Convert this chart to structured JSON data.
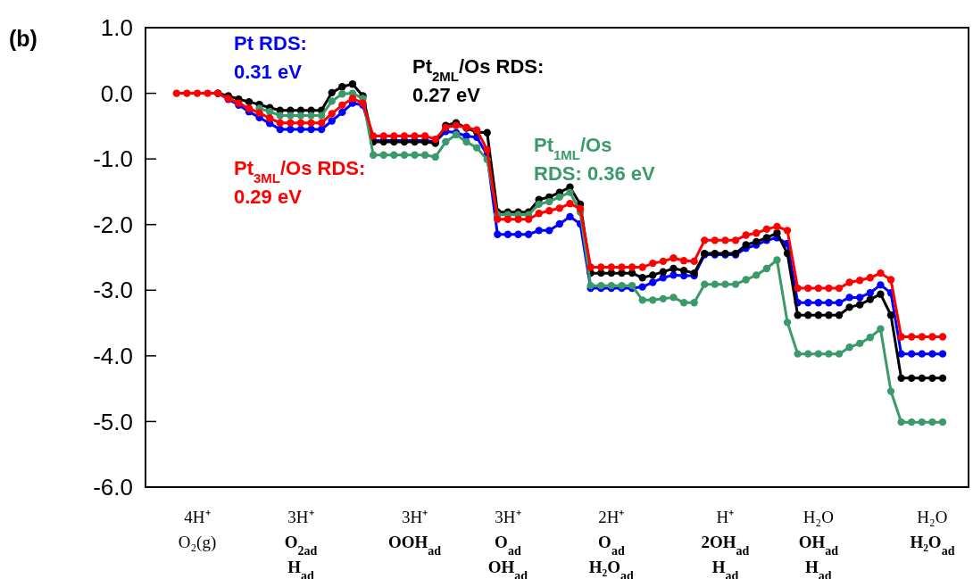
{
  "chart_data": {
    "type": "line",
    "title": "(b)",
    "annotations": [
      "Pt RDS:\n0.31 eV",
      "Pt$_{2ML}$/Os RDS:\n0.27 eV",
      "Pt$_{1ML}$/Os\nRDS: 0.36 eV",
      "Pt$_{3ML}$/Os RDS:\n0.29 eV"
    ],
    "categories": [
      null,
      null,
      "4H⁺\nO₂(g)",
      null,
      null,
      null,
      null,
      null,
      null,
      null,
      null,
      null,
      "3H⁺\nO$_{2ad}$\nH$_{ad}$",
      null,
      null,
      null,
      null,
      null,
      null,
      null,
      null,
      null,
      null,
      "3H⁺\nOOH$_{ad}$",
      null,
      null,
      null,
      null,
      null,
      null,
      null,
      null,
      "3H⁺\nO$_{ad}$\nOH$_{ad}$",
      null,
      null,
      null,
      null,
      null,
      null,
      null,
      null,
      null,
      "2H⁺\nO$_{ad}$\nH₂O$_{ad}$",
      null,
      null,
      null,
      null,
      null,
      null,
      null,
      null,
      null,
      null,
      "H⁺\n2OH$_{ad}$\nH$_{ad}$",
      null,
      null,
      null,
      null,
      null,
      null,
      null,
      null,
      "H₂O\nOH$_{ad}$\nH$_{ad}$",
      null,
      null,
      null,
      null,
      null,
      null,
      null,
      null,
      null,
      null,
      "H₂O\nH₂O$_{ad}$",
      null
    ],
    "ylim": [
      -6,
      1
    ],
    "yticks": [
      {
        "value": 1,
        "label": "1.0"
      },
      {
        "value": 0,
        "label": "0.0"
      },
      {
        "value": -1,
        "label": "-1.0"
      },
      {
        "value": -2,
        "label": "-2.0"
      },
      {
        "value": -3,
        "label": "-3.0"
      },
      {
        "value": -4,
        "label": "-4.0"
      },
      {
        "value": -5,
        "label": "-5.0"
      },
      {
        "value": -6,
        "label": "-6.0"
      }
    ],
    "grid": false,
    "series": [
      {
        "color": "#0000ff",
        "marker": "circle",
        "values": [
          null,
          null,
          null,
          null,
          0,
          -0.09,
          -0.18,
          -0.28,
          -0.37,
          -0.46,
          -0.55,
          -0.55,
          -0.55,
          -0.55,
          -0.55,
          -0.42,
          -0.29,
          -0.15,
          -0.18,
          -0.72,
          -0.72,
          -0.72,
          -0.72,
          -0.72,
          -0.72,
          -0.74,
          -0.58,
          -0.6,
          -0.65,
          -0.67,
          -0.94,
          -2.15,
          -2.15,
          -2.15,
          -2.15,
          -2.09,
          -2.09,
          -1.99,
          -1.88,
          -1.99,
          -2.97,
          -2.97,
          -2.97,
          -2.97,
          -2.97,
          -2.95,
          -2.88,
          -2.81,
          -2.77,
          -2.78,
          -2.78,
          -2.46,
          -2.46,
          -2.46,
          -2.46,
          -2.36,
          -2.31,
          -2.24,
          -2.2,
          -2.29,
          -3.19,
          -3.19,
          -3.19,
          -3.19,
          -3.19,
          -3.11,
          -3.11,
          -3.04,
          -2.92,
          -3.04,
          -3.97,
          -3.97,
          -3.97,
          -3.97,
          -3.97
        ]
      },
      {
        "color": "#000000",
        "marker": "circle",
        "values": [
          null,
          null,
          null,
          null,
          0,
          -0.04,
          -0.09,
          -0.13,
          -0.17,
          -0.22,
          -0.26,
          -0.26,
          -0.26,
          -0.26,
          -0.26,
          0.01,
          0.1,
          0.14,
          -0.04,
          -0.74,
          -0.74,
          -0.74,
          -0.74,
          -0.74,
          -0.74,
          -0.76,
          -0.49,
          -0.45,
          -0.53,
          -0.59,
          -0.6,
          -1.81,
          -1.81,
          -1.81,
          -1.81,
          -1.62,
          -1.58,
          -1.51,
          -1.43,
          -1.69,
          -2.74,
          -2.74,
          -2.74,
          -2.74,
          -2.74,
          -2.81,
          -2.77,
          -2.72,
          -2.67,
          -2.7,
          -2.74,
          -2.44,
          -2.44,
          -2.44,
          -2.44,
          -2.31,
          -2.26,
          -2.2,
          -2.13,
          -2.44,
          -3.38,
          -3.38,
          -3.38,
          -3.38,
          -3.38,
          -3.26,
          -3.22,
          -3.14,
          -3.06,
          -3.38,
          -4.34,
          -4.34,
          -4.34,
          -4.34,
          -4.34
        ]
      },
      {
        "color": "#3a9a6a",
        "marker": "circle",
        "values": [
          null,
          null,
          null,
          null,
          null,
          null,
          null,
          null,
          -0.23,
          -0.28,
          -0.34,
          -0.34,
          -0.34,
          -0.34,
          -0.34,
          -0.12,
          -0.01,
          0,
          -0.08,
          -0.94,
          -0.94,
          -0.94,
          -0.94,
          -0.94,
          -0.94,
          -0.97,
          -0.74,
          -0.63,
          -0.74,
          -0.83,
          -1.01,
          -1.85,
          -1.85,
          -1.85,
          -1.85,
          -1.69,
          -1.65,
          -1.58,
          -1.51,
          -1.81,
          -2.93,
          -2.93,
          -2.93,
          -2.93,
          -2.93,
          -3.15,
          -3.15,
          -3.13,
          -3.11,
          -3.19,
          -3.19,
          -2.91,
          -2.91,
          -2.91,
          -2.91,
          -2.84,
          -2.77,
          -2.67,
          -2.54,
          -3.49,
          -3.97,
          -3.97,
          -3.97,
          -3.97,
          -3.97,
          -3.87,
          -3.81,
          -3.72,
          -3.59,
          -4.54,
          -5.01,
          -5.01,
          -5.01,
          -5.01,
          -5.01
        ]
      },
      {
        "color": "#ff0000",
        "marker": "circle",
        "values": [
          0,
          0,
          0,
          0,
          0,
          -0.08,
          -0.15,
          -0.23,
          -0.3,
          -0.38,
          -0.45,
          -0.45,
          -0.45,
          -0.45,
          -0.45,
          -0.31,
          -0.18,
          -0.08,
          -0.15,
          -0.65,
          -0.65,
          -0.65,
          -0.65,
          -0.65,
          -0.65,
          -0.7,
          -0.52,
          -0.49,
          -0.52,
          -0.56,
          -0.86,
          -1.92,
          -1.92,
          -1.92,
          -1.92,
          -1.83,
          -1.79,
          -1.75,
          -1.68,
          -1.76,
          -2.65,
          -2.65,
          -2.65,
          -2.65,
          -2.65,
          -2.65,
          -2.59,
          -2.56,
          -2.51,
          -2.55,
          -2.56,
          -2.24,
          -2.24,
          -2.24,
          -2.24,
          -2.16,
          -2.13,
          -2.07,
          -2.03,
          -2.09,
          -2.97,
          -2.97,
          -2.97,
          -2.97,
          -2.97,
          -2.88,
          -2.85,
          -2.81,
          -2.74,
          -2.84,
          -3.71,
          -3.71,
          -3.71,
          -3.71,
          -3.71
        ]
      }
    ]
  }
}
